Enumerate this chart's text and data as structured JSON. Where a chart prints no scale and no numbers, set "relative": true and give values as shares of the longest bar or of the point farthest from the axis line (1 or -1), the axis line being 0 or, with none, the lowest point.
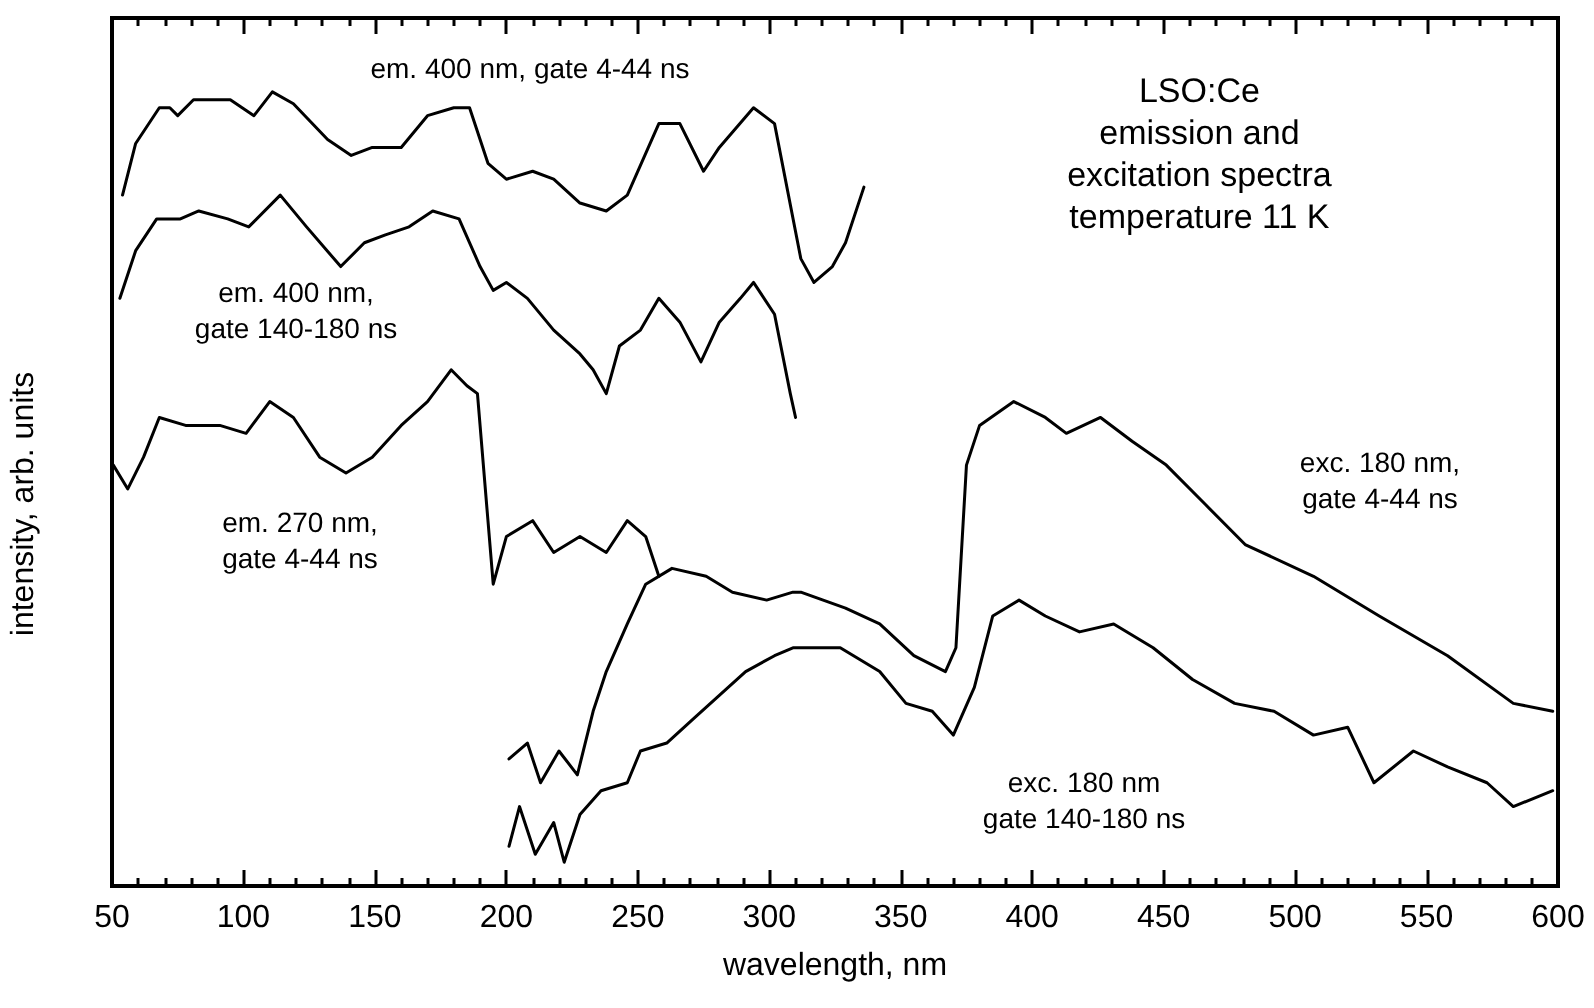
{
  "chart_data": {
    "type": "line",
    "relative": true,
    "title": "LSO:Ce\nemission and\nexcitation spectra\ntemperature 11 K",
    "xlabel": "wavelength, nm",
    "ylabel": "intensity, arb. units",
    "xlim": [
      50,
      600
    ],
    "xticks": [
      50,
      100,
      150,
      200,
      250,
      300,
      350,
      400,
      450,
      500,
      550,
      600
    ],
    "grid": false,
    "marker": "none",
    "line_style": "solid",
    "series": [
      {
        "name": "em. 400 nm, gate 4-44 ns",
        "color": "#000000",
        "x": [
          54,
          59,
          68,
          72,
          75,
          81,
          95,
          104,
          111,
          119,
          132,
          141,
          149,
          160,
          170,
          180,
          186,
          193,
          200,
          210,
          218,
          228,
          238,
          246,
          258,
          266,
          275,
          281,
          294,
          302,
          312,
          317,
          324,
          329,
          336
        ],
        "values": [
          0.87,
          0.935,
          0.98,
          0.98,
          0.97,
          0.99,
          0.99,
          0.97,
          1.0,
          0.985,
          0.94,
          0.92,
          0.93,
          0.93,
          0.97,
          0.98,
          0.98,
          0.91,
          0.89,
          0.9,
          0.89,
          0.86,
          0.85,
          0.87,
          0.96,
          0.96,
          0.9,
          0.93,
          0.98,
          0.96,
          0.79,
          0.76,
          0.78,
          0.81,
          0.88
        ]
      },
      {
        "name": "em. 400 nm,\ngate 140-180 ns",
        "color": "#000000",
        "x": [
          53,
          59,
          67,
          76,
          83,
          94,
          102,
          114,
          124,
          137,
          146,
          154,
          163,
          172,
          182,
          190,
          195,
          200,
          208,
          218,
          228,
          233,
          238,
          243,
          251,
          258,
          266,
          274,
          281,
          289,
          294,
          302,
          308,
          310
        ],
        "values": [
          0.74,
          0.8,
          0.84,
          0.84,
          0.85,
          0.84,
          0.83,
          0.87,
          0.83,
          0.78,
          0.81,
          0.82,
          0.83,
          0.85,
          0.84,
          0.78,
          0.75,
          0.76,
          0.74,
          0.7,
          0.67,
          0.65,
          0.62,
          0.68,
          0.7,
          0.74,
          0.71,
          0.66,
          0.71,
          0.74,
          0.76,
          0.72,
          0.62,
          0.59
        ]
      },
      {
        "name": "em. 270 nm,\ngate 4-44 ns",
        "color": "#000000",
        "x": [
          50.5,
          56,
          62,
          68,
          78,
          91,
          101,
          110,
          119,
          129,
          139,
          149,
          160,
          170,
          179,
          185,
          189,
          193,
          195,
          200,
          210,
          218,
          228,
          238,
          246,
          253,
          258
        ],
        "values": [
          0.53,
          0.5,
          0.54,
          0.59,
          0.58,
          0.58,
          0.57,
          0.61,
          0.59,
          0.54,
          0.52,
          0.54,
          0.58,
          0.61,
          0.65,
          0.63,
          0.62,
          0.46,
          0.38,
          0.44,
          0.46,
          0.42,
          0.44,
          0.42,
          0.46,
          0.44,
          0.39
        ]
      },
      {
        "name": "exc. 180 nm,\ngate 4-44 ns",
        "color": "#000000",
        "x": [
          201,
          208,
          213,
          220,
          227,
          233,
          238,
          246,
          253,
          263,
          276,
          286,
          299,
          309,
          312,
          329,
          342,
          355,
          367,
          371,
          375,
          380,
          393,
          405,
          413,
          426,
          438,
          451,
          466,
          481,
          507,
          532,
          558,
          583,
          598
        ],
        "values": [
          0.16,
          0.18,
          0.13,
          0.17,
          0.14,
          0.22,
          0.27,
          0.33,
          0.38,
          0.4,
          0.39,
          0.37,
          0.36,
          0.37,
          0.37,
          0.35,
          0.33,
          0.29,
          0.27,
          0.3,
          0.53,
          0.58,
          0.61,
          0.59,
          0.57,
          0.59,
          0.56,
          0.53,
          0.48,
          0.43,
          0.39,
          0.34,
          0.29,
          0.23,
          0.22
        ]
      },
      {
        "name": "exc. 180 nm\ngate 140-180 ns",
        "color": "#000000",
        "x": [
          201,
          205,
          211,
          218,
          222,
          228,
          236,
          246,
          251,
          261,
          271,
          281,
          291,
          302,
          309,
          327,
          342,
          352,
          362,
          370,
          378,
          385,
          395,
          405,
          418,
          431,
          446,
          461,
          477,
          492,
          507,
          520,
          530,
          545,
          558,
          573,
          583,
          598
        ],
        "values": [
          0.05,
          0.1,
          0.04,
          0.08,
          0.03,
          0.09,
          0.12,
          0.13,
          0.17,
          0.18,
          0.21,
          0.24,
          0.27,
          0.29,
          0.3,
          0.3,
          0.27,
          0.23,
          0.22,
          0.19,
          0.25,
          0.34,
          0.36,
          0.34,
          0.32,
          0.33,
          0.3,
          0.26,
          0.23,
          0.22,
          0.19,
          0.2,
          0.13,
          0.17,
          0.15,
          0.13,
          0.1,
          0.12
        ]
      }
    ]
  }
}
